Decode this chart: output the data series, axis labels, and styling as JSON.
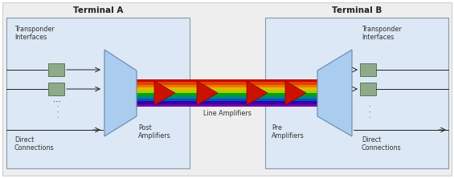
{
  "fig_width": 5.65,
  "fig_height": 2.22,
  "dpi": 100,
  "bg_color": "#ffffff",
  "outer_bg": "#f0f0f0",
  "terminal_box_color": "#dce8f5",
  "terminal_box_edge": "#8899aa",
  "terminal_A_label": "Terminal A",
  "terminal_B_label": "Terminal B",
  "transponder_label": "Transponder\nInterfaces",
  "direct_label": "Direct\nConnections",
  "post_amp_label": "Post\nAmplifiers",
  "line_amp_label": "Line Amplifiers",
  "pre_amp_label": "Pre\nAmplifiers",
  "box_color": "#8faa8b",
  "box_edge": "#5a7a57",
  "mux_color": "#aaccee",
  "mux_edge": "#6688aa",
  "font_size_title": 7.5,
  "font_size_label": 5.8,
  "font_size_dots": 7
}
